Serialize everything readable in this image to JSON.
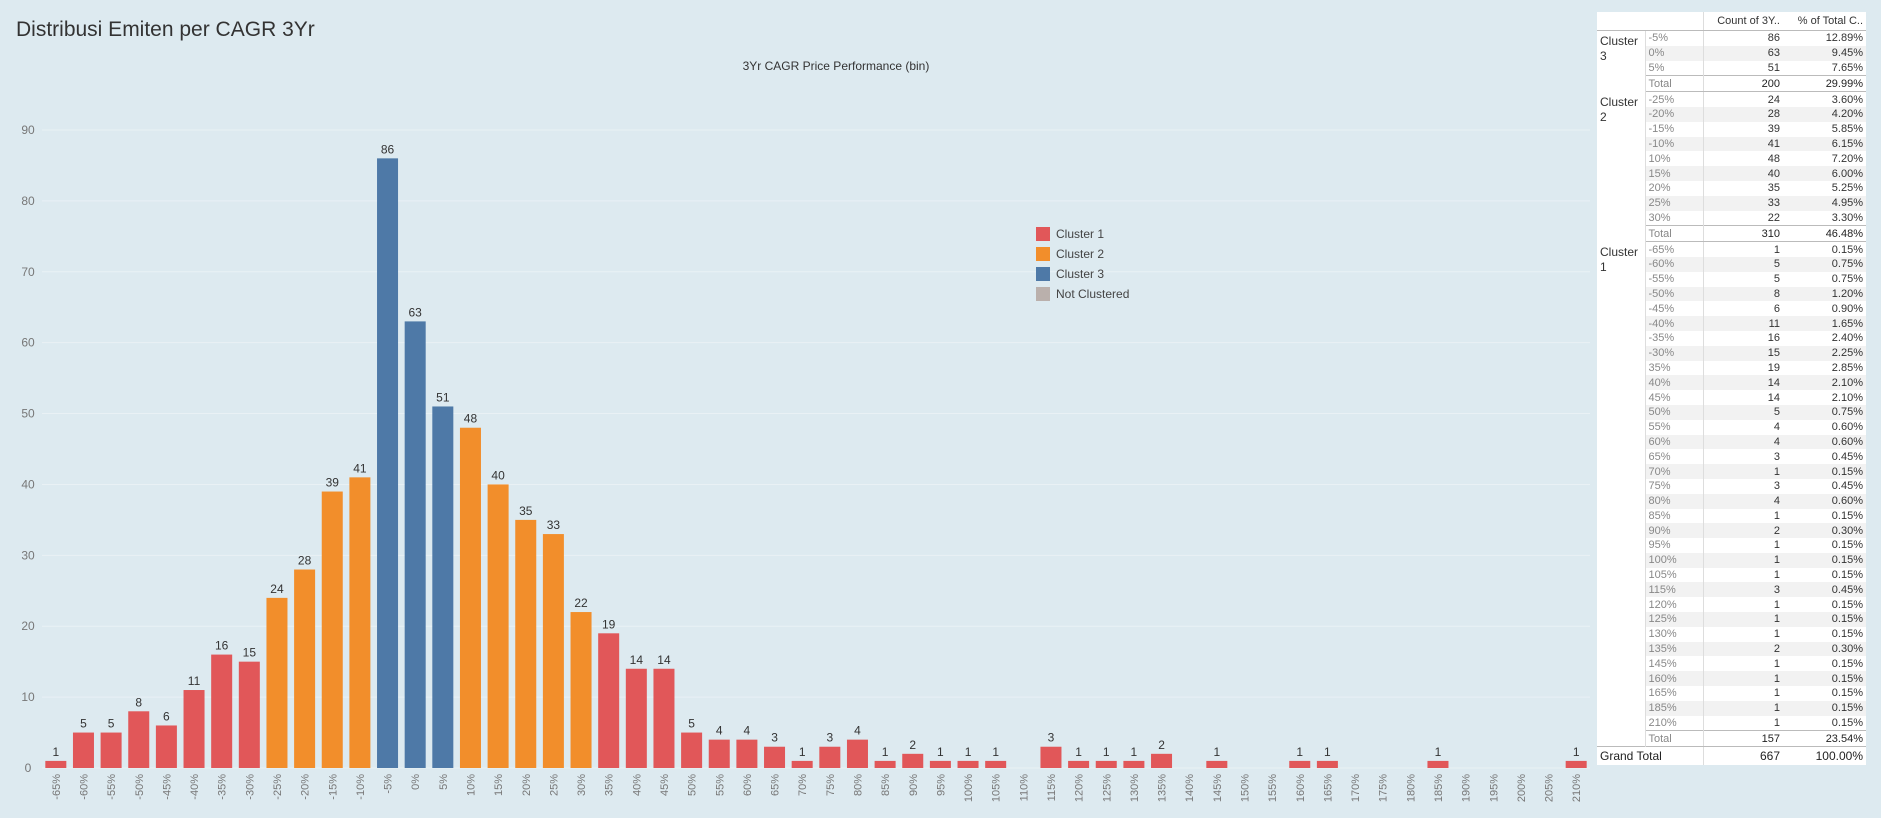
{
  "page": {
    "title": "Distribusi Emiten per CAGR 3Yr"
  },
  "colors": {
    "cluster1": "#e15759",
    "cluster2": "#f28e2b",
    "cluster3": "#4e79a7",
    "not_clustered": "#bab0ac"
  },
  "legend": [
    {
      "label": "Cluster 1",
      "color": "#e15759"
    },
    {
      "label": "Cluster 2",
      "color": "#f28e2b"
    },
    {
      "label": "Cluster 3",
      "color": "#4e79a7"
    },
    {
      "label": "Not Clustered",
      "color": "#bab0ac"
    }
  ],
  "chart_data": {
    "type": "bar",
    "title": "3Yr CAGR Price Performance (bin)",
    "xlabel": "",
    "ylabel": "",
    "ylim": [
      0,
      92
    ],
    "yticks": [
      0,
      10,
      20,
      30,
      40,
      50,
      60,
      70,
      80,
      90
    ],
    "grid": true,
    "legend_position": "center-right",
    "categories": [
      "-65%",
      "-60%",
      "-55%",
      "-50%",
      "-45%",
      "-40%",
      "-35%",
      "-30%",
      "-25%",
      "-20%",
      "-15%",
      "-10%",
      "-5%",
      "0%",
      "5%",
      "10%",
      "15%",
      "20%",
      "25%",
      "30%",
      "35%",
      "40%",
      "45%",
      "50%",
      "55%",
      "60%",
      "65%",
      "70%",
      "75%",
      "80%",
      "85%",
      "90%",
      "95%",
      "100%",
      "105%",
      "110%",
      "115%",
      "120%",
      "125%",
      "130%",
      "135%",
      "140%",
      "145%",
      "150%",
      "155%",
      "160%",
      "165%",
      "170%",
      "175%",
      "180%",
      "185%",
      "190%",
      "195%",
      "200%",
      "205%",
      "210%"
    ],
    "values": [
      1,
      5,
      5,
      8,
      6,
      11,
      16,
      15,
      24,
      28,
      39,
      41,
      86,
      63,
      51,
      48,
      40,
      35,
      33,
      22,
      19,
      14,
      14,
      5,
      4,
      4,
      3,
      1,
      3,
      4,
      1,
      2,
      1,
      1,
      1,
      null,
      3,
      1,
      1,
      1,
      2,
      null,
      1,
      null,
      null,
      1,
      1,
      null,
      null,
      null,
      1,
      null,
      null,
      null,
      null,
      1
    ],
    "clusters": [
      1,
      1,
      1,
      1,
      1,
      1,
      1,
      1,
      2,
      2,
      2,
      2,
      3,
      3,
      3,
      2,
      2,
      2,
      2,
      2,
      1,
      1,
      1,
      1,
      1,
      1,
      1,
      1,
      1,
      1,
      1,
      1,
      1,
      1,
      1,
      0,
      1,
      1,
      1,
      1,
      1,
      0,
      1,
      0,
      0,
      1,
      1,
      0,
      0,
      0,
      1,
      0,
      0,
      0,
      0,
      1
    ]
  },
  "table": {
    "headers": [
      "Count of 3Y..",
      "% of Total C.."
    ],
    "groups": [
      {
        "label": "Cluster 3",
        "rows": [
          [
            "-5%",
            "86",
            "12.89%"
          ],
          [
            "0%",
            "63",
            "9.45%"
          ],
          [
            "5%",
            "51",
            "7.65%"
          ]
        ],
        "total": [
          "Total",
          "200",
          "29.99%"
        ]
      },
      {
        "label": "Cluster 2",
        "rows": [
          [
            "-25%",
            "24",
            "3.60%"
          ],
          [
            "-20%",
            "28",
            "4.20%"
          ],
          [
            "-15%",
            "39",
            "5.85%"
          ],
          [
            "-10%",
            "41",
            "6.15%"
          ],
          [
            "10%",
            "48",
            "7.20%"
          ],
          [
            "15%",
            "40",
            "6.00%"
          ],
          [
            "20%",
            "35",
            "5.25%"
          ],
          [
            "25%",
            "33",
            "4.95%"
          ],
          [
            "30%",
            "22",
            "3.30%"
          ]
        ],
        "total": [
          "Total",
          "310",
          "46.48%"
        ]
      },
      {
        "label": "Cluster 1",
        "rows": [
          [
            "-65%",
            "1",
            "0.15%"
          ],
          [
            "-60%",
            "5",
            "0.75%"
          ],
          [
            "-55%",
            "5",
            "0.75%"
          ],
          [
            "-50%",
            "8",
            "1.20%"
          ],
          [
            "-45%",
            "6",
            "0.90%"
          ],
          [
            "-40%",
            "11",
            "1.65%"
          ],
          [
            "-35%",
            "16",
            "2.40%"
          ],
          [
            "-30%",
            "15",
            "2.25%"
          ],
          [
            "35%",
            "19",
            "2.85%"
          ],
          [
            "40%",
            "14",
            "2.10%"
          ],
          [
            "45%",
            "14",
            "2.10%"
          ],
          [
            "50%",
            "5",
            "0.75%"
          ],
          [
            "55%",
            "4",
            "0.60%"
          ],
          [
            "60%",
            "4",
            "0.60%"
          ],
          [
            "65%",
            "3",
            "0.45%"
          ],
          [
            "70%",
            "1",
            "0.15%"
          ],
          [
            "75%",
            "3",
            "0.45%"
          ],
          [
            "80%",
            "4",
            "0.60%"
          ],
          [
            "85%",
            "1",
            "0.15%"
          ],
          [
            "90%",
            "2",
            "0.30%"
          ],
          [
            "95%",
            "1",
            "0.15%"
          ],
          [
            "100%",
            "1",
            "0.15%"
          ],
          [
            "105%",
            "1",
            "0.15%"
          ],
          [
            "115%",
            "3",
            "0.45%"
          ],
          [
            "120%",
            "1",
            "0.15%"
          ],
          [
            "125%",
            "1",
            "0.15%"
          ],
          [
            "130%",
            "1",
            "0.15%"
          ],
          [
            "135%",
            "2",
            "0.30%"
          ],
          [
            "145%",
            "1",
            "0.15%"
          ],
          [
            "160%",
            "1",
            "0.15%"
          ],
          [
            "165%",
            "1",
            "0.15%"
          ],
          [
            "185%",
            "1",
            "0.15%"
          ],
          [
            "210%",
            "1",
            "0.15%"
          ]
        ],
        "total": [
          "Total",
          "157",
          "23.54%"
        ]
      }
    ],
    "grand_total": [
      "Grand Total",
      "667",
      "100.00%"
    ]
  }
}
